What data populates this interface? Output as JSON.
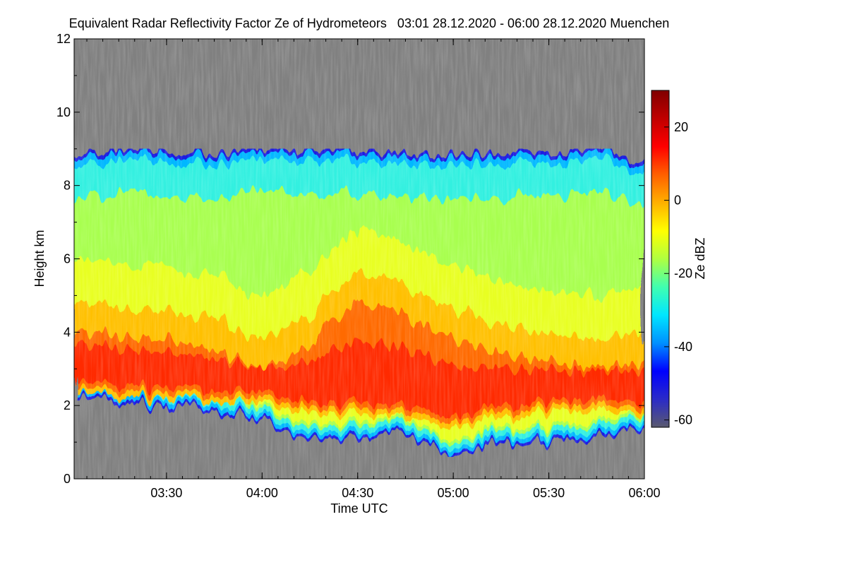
{
  "chart_data": {
    "type": "heatmap",
    "title": "Equivalent Radar Reflectivity Factor Ze of Hydrometeors   03:01 28.12.2020 - 06:00 28.12.2020 Muenchen",
    "xlabel": "Time UTC",
    "ylabel": "Height km",
    "x_range": [
      "03:01",
      "06:00"
    ],
    "x_ticks": [
      {
        "value": "03:30",
        "label": "03:30"
      },
      {
        "value": "04:00",
        "label": "04:00"
      },
      {
        "value": "04:30",
        "label": "04:30"
      },
      {
        "value": "05:00",
        "label": "05:00"
      },
      {
        "value": "05:30",
        "label": "05:30"
      },
      {
        "value": "06:00",
        "label": "06:00"
      }
    ],
    "ylim": [
      0,
      12
    ],
    "y_ticks": [
      0,
      2,
      4,
      6,
      8,
      10,
      12
    ],
    "colorbar": {
      "label": "Ze dBZ",
      "range": [
        -62,
        30
      ],
      "ticks": [
        -60,
        -40,
        -20,
        0,
        20
      ],
      "colors": [
        "#5a5a6e",
        "#2a2ac8",
        "#0000ff",
        "#0090ff",
        "#00e6ff",
        "#40ffb0",
        "#b0ff40",
        "#ffff00",
        "#ffb000",
        "#ff6000",
        "#ff0000",
        "#c00000",
        "#800000"
      ]
    },
    "background_color": "#808080",
    "cloud_profile": [
      {
        "time": "03:01",
        "top_km": 8.8,
        "base_km": 2.3,
        "core_top_km": 4.0,
        "core_base_km": 2.6
      },
      {
        "time": "03:15",
        "top_km": 9.0,
        "base_km": 2.1,
        "core_top_km": 3.9,
        "core_base_km": 2.4
      },
      {
        "time": "03:30",
        "top_km": 8.9,
        "base_km": 1.9,
        "core_top_km": 3.8,
        "core_base_km": 2.3
      },
      {
        "time": "03:45",
        "top_km": 8.9,
        "base_km": 1.9,
        "core_top_km": 3.5,
        "core_base_km": 2.3
      },
      {
        "time": "04:00",
        "top_km": 9.0,
        "base_km": 1.5,
        "core_top_km": 3.0,
        "core_base_km": 2.2
      },
      {
        "time": "04:15",
        "top_km": 9.0,
        "base_km": 1.1,
        "core_top_km": 3.6,
        "core_base_km": 2.0
      },
      {
        "time": "04:30",
        "top_km": 9.0,
        "base_km": 1.1,
        "core_top_km": 4.9,
        "core_base_km": 1.9
      },
      {
        "time": "04:45",
        "top_km": 8.9,
        "base_km": 1.3,
        "core_top_km": 4.4,
        "core_base_km": 1.9
      },
      {
        "time": "05:00",
        "top_km": 8.8,
        "base_km": 0.6,
        "core_top_km": 3.8,
        "core_base_km": 1.6
      },
      {
        "time": "05:15",
        "top_km": 8.9,
        "base_km": 1.0,
        "core_top_km": 3.4,
        "core_base_km": 1.8
      },
      {
        "time": "05:30",
        "top_km": 8.9,
        "base_km": 0.9,
        "core_top_km": 3.2,
        "core_base_km": 1.9
      },
      {
        "time": "05:45",
        "top_km": 9.0,
        "base_km": 1.1,
        "core_top_km": 3.0,
        "core_base_km": 2.0
      },
      {
        "time": "06:00",
        "top_km": 8.7,
        "base_km": 1.5,
        "core_top_km": 3.2,
        "core_base_km": 2.0
      }
    ]
  }
}
